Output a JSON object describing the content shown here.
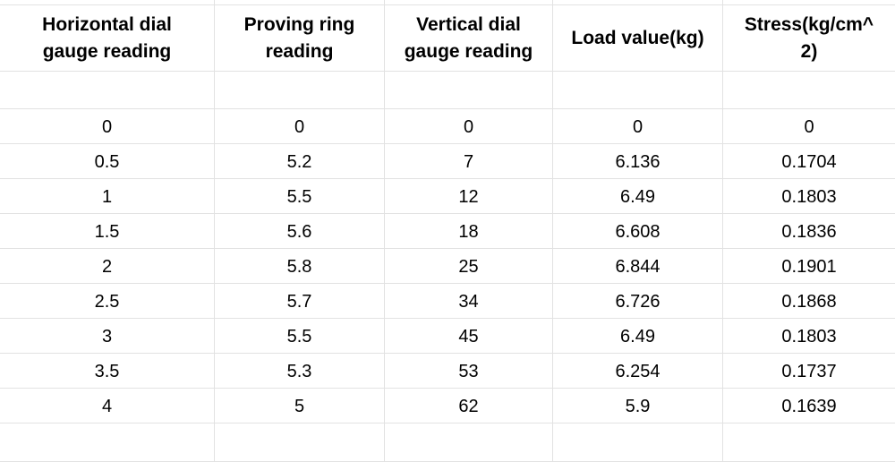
{
  "table": {
    "columns": [
      "Horizontal dial\ngauge reading",
      "Proving ring\nreading",
      "Vertical dial\ngauge reading",
      "Load value(kg)",
      "Stress(kg/cm^\n2)"
    ],
    "rows": [
      [
        "0",
        "0",
        "0",
        "0",
        "0"
      ],
      [
        "0.5",
        "5.2",
        "7",
        "6.136",
        "0.1704"
      ],
      [
        "1",
        "5.5",
        "12",
        "6.49",
        "0.1803"
      ],
      [
        "1.5",
        "5.6",
        "18",
        "6.608",
        "0.1836"
      ],
      [
        "2",
        "5.8",
        "25",
        "6.844",
        "0.1901"
      ],
      [
        "2.5",
        "5.7",
        "34",
        "6.726",
        "0.1868"
      ],
      [
        "3",
        "5.5",
        "45",
        "6.49",
        "0.1803"
      ],
      [
        "3.5",
        "5.3",
        "53",
        "6.254",
        "0.1737"
      ],
      [
        "4",
        "5",
        "62",
        "5.9",
        "0.1639"
      ]
    ]
  }
}
